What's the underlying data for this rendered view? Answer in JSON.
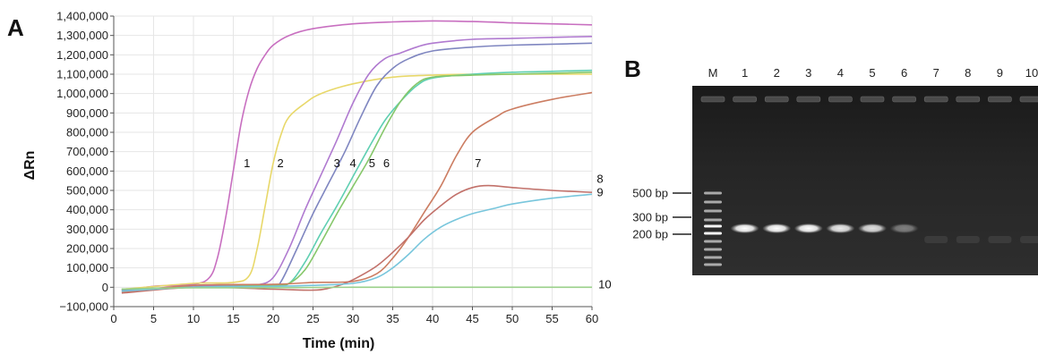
{
  "panel_a": {
    "letter": "A",
    "chart_data": {
      "type": "line",
      "title": "",
      "xlabel": "Time (min)",
      "ylabel": "ΔRn",
      "xlim": [
        0,
        60
      ],
      "ylim": [
        -100000,
        1400000
      ],
      "xticks": [
        0,
        5,
        10,
        15,
        20,
        25,
        30,
        35,
        40,
        45,
        50,
        55,
        60
      ],
      "xtick_labels": [
        "0",
        "5",
        "10",
        "15",
        "20",
        "25",
        "30",
        "35",
        "40",
        "45",
        "50",
        "55",
        "60"
      ],
      "yticks": [
        -100000,
        0,
        100000,
        200000,
        300000,
        400000,
        500000,
        600000,
        700000,
        800000,
        900000,
        1000000,
        1100000,
        1200000,
        1300000,
        1400000
      ],
      "ytick_labels": [
        "−100,000",
        "0",
        "100,000",
        "200,000",
        "300,000",
        "400,000",
        "500,000",
        "600,000",
        "700,000",
        "800,000",
        "900,000",
        "1,000,000",
        "1,100,000",
        "1,200,000",
        "1,300,000",
        "1,400,000"
      ],
      "grid": true,
      "series": [
        {
          "label": "1",
          "color": "#c86fc0",
          "label_pos": [
            16.3,
            620000
          ],
          "x": [
            1,
            5,
            10,
            12,
            13,
            14,
            15,
            16,
            17,
            18,
            19,
            20,
            22,
            25,
            30,
            35,
            40,
            45,
            50,
            55,
            60
          ],
          "y": [
            -20000,
            5000,
            15000,
            50000,
            150000,
            350000,
            600000,
            850000,
            1020000,
            1130000,
            1200000,
            1250000,
            1300000,
            1335000,
            1360000,
            1370000,
            1375000,
            1372000,
            1365000,
            1360000,
            1355000
          ]
        },
        {
          "label": "2",
          "color": "#e8d86a",
          "label_pos": [
            20.5,
            620000
          ],
          "x": [
            1,
            10,
            15,
            17,
            18,
            19,
            20,
            21,
            22,
            24,
            26,
            30,
            35,
            40,
            45,
            50,
            55,
            60
          ],
          "y": [
            -10000,
            20000,
            25000,
            60000,
            200000,
            420000,
            640000,
            790000,
            880000,
            950000,
            1000000,
            1050000,
            1085000,
            1095000,
            1100000,
            1100000,
            1100000,
            1100000
          ]
        },
        {
          "label": "3",
          "color": "#b07ad0",
          "label_pos": [
            27.6,
            620000
          ],
          "x": [
            1,
            10,
            15,
            18,
            20,
            22,
            24,
            26,
            28,
            30,
            32,
            34,
            36,
            38,
            40,
            45,
            50,
            55,
            60
          ],
          "y": [
            -15000,
            5000,
            8000,
            12000,
            50000,
            200000,
            400000,
            580000,
            760000,
            950000,
            1100000,
            1180000,
            1210000,
            1240000,
            1260000,
            1280000,
            1285000,
            1290000,
            1295000
          ]
        },
        {
          "label": "4",
          "color": "#7f86c0",
          "label_pos": [
            29.6,
            620000
          ],
          "x": [
            1,
            10,
            15,
            20,
            21,
            23,
            25,
            27,
            29,
            31,
            33,
            35,
            37,
            40,
            45,
            50,
            55,
            60
          ],
          "y": [
            -15000,
            0,
            5000,
            10000,
            30000,
            200000,
            380000,
            540000,
            700000,
            880000,
            1040000,
            1130000,
            1180000,
            1220000,
            1240000,
            1250000,
            1255000,
            1260000
          ]
        },
        {
          "label": "5",
          "color": "#5fcfb2",
          "label_pos": [
            32.0,
            620000
          ],
          "x": [
            1,
            10,
            15,
            20,
            22,
            24,
            26,
            28,
            30,
            32,
            34,
            36,
            38,
            40,
            45,
            50,
            55,
            60
          ],
          "y": [
            -10000,
            0,
            5000,
            10000,
            20000,
            130000,
            280000,
            420000,
            570000,
            720000,
            860000,
            960000,
            1040000,
            1080000,
            1100000,
            1110000,
            1115000,
            1120000
          ]
        },
        {
          "label": "6",
          "color": "#86c76a",
          "label_pos": [
            33.8,
            620000
          ],
          "x": [
            1,
            10,
            15,
            20,
            22,
            24,
            26,
            28,
            30,
            32,
            34,
            36,
            38,
            40,
            45,
            50,
            55,
            60
          ],
          "y": [
            -10000,
            0,
            5000,
            10000,
            20000,
            90000,
            230000,
            380000,
            520000,
            660000,
            820000,
            960000,
            1050000,
            1085000,
            1095000,
            1100000,
            1105000,
            1110000
          ]
        },
        {
          "label": "7",
          "color": "#cc7d62",
          "label_pos": [
            45.3,
            620000
          ],
          "x": [
            1,
            10,
            20,
            25,
            30,
            33,
            35,
            37,
            39,
            41,
            43,
            45,
            48,
            50,
            55,
            60
          ],
          "y": [
            -25000,
            10000,
            15000,
            25000,
            30000,
            70000,
            150000,
            260000,
            390000,
            520000,
            680000,
            800000,
            880000,
            920000,
            970000,
            1005000
          ]
        },
        {
          "label": "8",
          "color": "#c2716a",
          "label_pos": [
            60.6,
            540000
          ],
          "x": [
            1,
            10,
            20,
            25,
            27,
            29,
            31,
            33,
            35,
            37,
            39,
            41,
            43,
            45,
            47,
            50,
            55,
            60
          ],
          "y": [
            -30000,
            0,
            -10000,
            -15000,
            -5000,
            20000,
            60000,
            110000,
            180000,
            260000,
            350000,
            420000,
            480000,
            515000,
            525000,
            515000,
            500000,
            490000
          ]
        },
        {
          "label": "9",
          "color": "#78c6dc",
          "label_pos": [
            60.6,
            470000
          ],
          "x": [
            1,
            10,
            20,
            25,
            30,
            33,
            35,
            37,
            39,
            41,
            43,
            45,
            48,
            50,
            55,
            60
          ],
          "y": [
            -20000,
            0,
            5000,
            10000,
            20000,
            50000,
            100000,
            170000,
            250000,
            310000,
            350000,
            380000,
            410000,
            430000,
            460000,
            480000
          ]
        },
        {
          "label": "10",
          "color": "#9ad08a",
          "label_pos": [
            60.8,
            -5000
          ],
          "x": [
            1,
            5,
            10,
            20,
            30,
            40,
            50,
            60
          ],
          "y": [
            -10000,
            -5000,
            -3000,
            -2000,
            0,
            0,
            0,
            0
          ]
        }
      ]
    }
  },
  "panel_b": {
    "letter": "B",
    "lanes": [
      "M",
      "1",
      "2",
      "3",
      "4",
      "5",
      "6",
      "7",
      "8",
      "9",
      "10"
    ],
    "markers": [
      {
        "label": "500 bp"
      },
      {
        "label": "300 bp"
      },
      {
        "label": "200 bp"
      }
    ],
    "product_band_brightness": [
      1.0,
      1.0,
      1.0,
      0.9,
      0.85,
      0.4,
      0,
      0,
      0,
      0
    ]
  }
}
